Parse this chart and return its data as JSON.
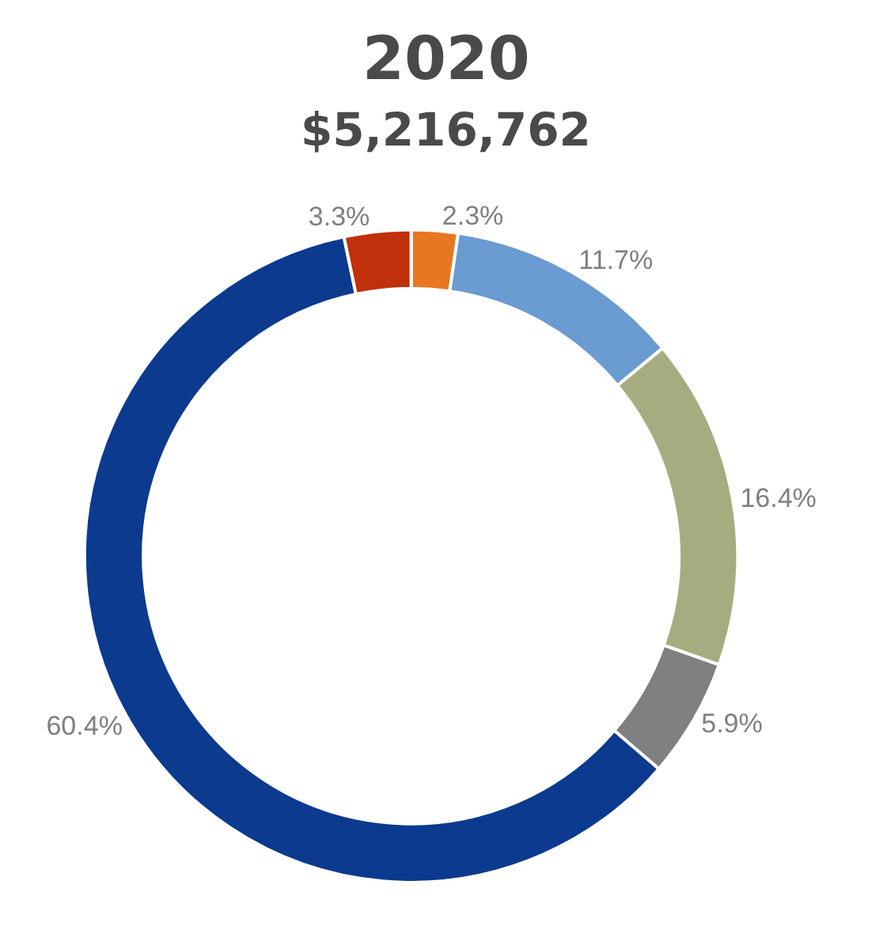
{
  "chart_data": {
    "type": "donut",
    "title": "2020",
    "subtitle": "$5,216,762",
    "categories": [
      null,
      null,
      null,
      null,
      null,
      null
    ],
    "values": [
      2.3,
      11.7,
      16.4,
      5.9,
      60.4,
      3.3
    ],
    "value_labels": [
      "2.3%",
      "11.7%",
      "16.4%",
      "5.9%",
      "60.4%",
      "3.3%"
    ],
    "colors": [
      "#e87722",
      "#6a9bd1",
      "#a5ad80",
      "#808080",
      "#0b3a8e",
      "#c0300a"
    ],
    "legend": false
  }
}
